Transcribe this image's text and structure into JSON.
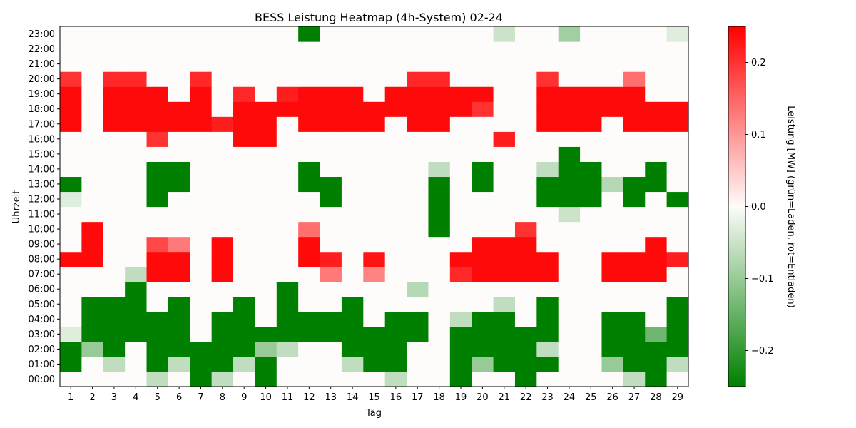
{
  "chart_data": {
    "type": "heatmap",
    "title": "BESS Leistung Heatmap (4h-System) 02-24",
    "xlabel": "Tag",
    "ylabel": "Uhrzeit",
    "colorbar_label": "Leistung [MW] (grün=Laden, rot=Entladen)",
    "colorbar_ticks": [
      "−0.2",
      "−0.1",
      "0.0",
      "0.1",
      "0.2"
    ],
    "colorbar_tick_values": [
      -0.2,
      -0.1,
      0.0,
      0.1,
      0.2
    ],
    "vlim": [
      -0.25,
      0.25
    ],
    "colormap": {
      "low": "#008000",
      "mid": "#fdfcfb",
      "high": "#ff0000"
    },
    "x": [
      "1",
      "2",
      "3",
      "4",
      "5",
      "6",
      "7",
      "8",
      "9",
      "10",
      "11",
      "12",
      "13",
      "14",
      "15",
      "16",
      "17",
      "18",
      "19",
      "20",
      "21",
      "22",
      "23",
      "24",
      "25",
      "26",
      "27",
      "28",
      "29"
    ],
    "y": [
      "00:00",
      "01:00",
      "02:00",
      "03:00",
      "04:00",
      "05:00",
      "06:00",
      "07:00",
      "08:00",
      "09:00",
      "10:00",
      "11:00",
      "12:00",
      "13:00",
      "14:00",
      "15:00",
      "16:00",
      "17:00",
      "18:00",
      "19:00",
      "20:00",
      "21:00",
      "22:00",
      "23:00"
    ],
    "values": [
      [
        0,
        0,
        0,
        0,
        -0.06,
        0,
        -0.25,
        -0.06,
        0,
        -0.25,
        0,
        0,
        0,
        0,
        0,
        -0.06,
        0,
        0,
        -0.25,
        0,
        0,
        -0.25,
        0,
        0,
        0,
        0,
        -0.06,
        -0.25,
        0
      ],
      [
        -0.25,
        0,
        -0.06,
        0,
        -0.25,
        -0.06,
        -0.25,
        -0.25,
        -0.06,
        -0.25,
        0,
        0,
        0,
        -0.06,
        -0.25,
        -0.25,
        0,
        0,
        -0.25,
        -0.1,
        -0.25,
        -0.25,
        -0.25,
        0,
        0,
        -0.1,
        -0.25,
        -0.25,
        -0.06
      ],
      [
        -0.25,
        -0.1,
        -0.25,
        0,
        -0.25,
        -0.25,
        -0.25,
        -0.25,
        -0.25,
        -0.1,
        -0.06,
        0,
        0,
        -0.25,
        -0.25,
        -0.25,
        0,
        0,
        -0.25,
        -0.25,
        -0.25,
        -0.25,
        -0.06,
        0,
        0,
        -0.25,
        -0.25,
        -0.25,
        -0.25
      ],
      [
        -0.03,
        -0.25,
        -0.25,
        -0.25,
        -0.25,
        -0.25,
        0,
        -0.25,
        -0.25,
        -0.25,
        -0.25,
        -0.25,
        -0.25,
        -0.25,
        -0.25,
        -0.25,
        -0.25,
        0,
        -0.25,
        -0.25,
        -0.25,
        -0.25,
        -0.25,
        0,
        0,
        -0.25,
        -0.25,
        -0.14,
        -0.25
      ],
      [
        0,
        -0.25,
        -0.25,
        -0.25,
        -0.25,
        -0.25,
        0,
        -0.25,
        -0.25,
        0,
        -0.25,
        -0.25,
        -0.25,
        -0.25,
        0,
        -0.25,
        -0.25,
        0,
        -0.06,
        -0.25,
        -0.25,
        0,
        -0.25,
        0,
        0,
        -0.25,
        -0.25,
        0,
        -0.25
      ],
      [
        0,
        -0.25,
        -0.25,
        -0.25,
        0,
        -0.25,
        0,
        0,
        -0.25,
        0,
        -0.25,
        0,
        0,
        -0.25,
        0,
        0,
        0,
        0,
        0,
        0,
        -0.06,
        0,
        -0.25,
        0,
        0,
        0,
        0,
        0,
        -0.25
      ],
      [
        0,
        0,
        0,
        -0.25,
        0,
        0,
        0,
        0,
        0,
        0,
        -0.25,
        0,
        0,
        0,
        0,
        0,
        -0.07,
        0,
        0,
        0,
        0,
        0,
        0,
        0,
        0,
        0,
        0,
        0,
        0
      ],
      [
        0,
        0,
        0,
        -0.06,
        0.24,
        0.24,
        0,
        0.24,
        0,
        0,
        0,
        0,
        0.13,
        0,
        0.12,
        0,
        0,
        0,
        0.21,
        0.24,
        0.24,
        0.24,
        0.24,
        0,
        0,
        0.24,
        0.24,
        0.24,
        0
      ],
      [
        0.24,
        0.24,
        0,
        0,
        0.24,
        0.24,
        0,
        0.24,
        0,
        0,
        0,
        0.24,
        0.22,
        0,
        0.23,
        0,
        0,
        0,
        0.24,
        0.24,
        0.24,
        0.24,
        0.24,
        0,
        0,
        0.24,
        0.24,
        0.24,
        0.22
      ],
      [
        0,
        0.24,
        0,
        0,
        0.18,
        0.13,
        0,
        0.24,
        0,
        0,
        0,
        0.24,
        0,
        0,
        0,
        0,
        0,
        0,
        0,
        0.24,
        0.24,
        0.24,
        0,
        0,
        0,
        0,
        0,
        0.24,
        0
      ],
      [
        0,
        0.24,
        0,
        0,
        0,
        0,
        0,
        0,
        0,
        0,
        0,
        0.14,
        0,
        0,
        0,
        0,
        0,
        -0.25,
        0,
        0,
        0,
        0.2,
        0,
        0,
        0,
        0,
        0,
        0,
        0
      ],
      [
        0,
        0,
        0,
        0,
        0,
        0,
        0,
        0,
        0,
        0,
        0,
        0,
        0,
        0,
        0,
        0,
        0,
        -0.25,
        0,
        0,
        0,
        0,
        0,
        -0.05,
        0,
        0,
        0,
        0,
        0
      ],
      [
        -0.03,
        0,
        0,
        0,
        -0.25,
        0,
        0,
        0,
        0,
        0,
        0,
        0,
        -0.25,
        0,
        0,
        0,
        0,
        -0.25,
        0,
        0,
        0,
        0,
        -0.25,
        -0.25,
        -0.25,
        0,
        -0.25,
        0,
        -0.25
      ],
      [
        -0.25,
        0,
        0,
        0,
        -0.25,
        -0.25,
        0,
        0,
        0,
        0,
        0,
        -0.25,
        -0.25,
        0,
        0,
        0,
        0,
        -0.25,
        0,
        -0.25,
        0,
        0,
        -0.25,
        -0.25,
        -0.25,
        -0.07,
        -0.25,
        -0.25,
        0
      ],
      [
        0,
        0,
        0,
        0,
        -0.25,
        -0.25,
        0,
        0,
        0,
        0,
        0,
        -0.25,
        0,
        0,
        0,
        0,
        0,
        -0.06,
        0,
        -0.25,
        0,
        0,
        -0.06,
        -0.25,
        -0.25,
        0,
        0,
        -0.25,
        0
      ],
      [
        0,
        0,
        0,
        0,
        0,
        0,
        0,
        0,
        0,
        0,
        0,
        0,
        0,
        0,
        0,
        0,
        0,
        0,
        0,
        0,
        0,
        0,
        0,
        -0.25,
        0,
        0,
        0,
        0,
        0
      ],
      [
        0,
        0,
        0,
        0,
        0.2,
        0,
        0,
        0,
        0.24,
        0.24,
        0,
        0,
        0,
        0,
        0,
        0,
        0,
        0,
        0,
        0,
        0.22,
        0,
        0,
        0,
        0,
        0,
        0,
        0,
        0
      ],
      [
        0.24,
        0,
        0.24,
        0.24,
        0.24,
        0.24,
        0.24,
        0.22,
        0.24,
        0.24,
        0,
        0.24,
        0.24,
        0.24,
        0.24,
        0,
        0.24,
        0.24,
        0,
        0,
        0,
        0,
        0.24,
        0.24,
        0.24,
        0,
        0.24,
        0.24,
        0.24
      ],
      [
        0.24,
        0,
        0.24,
        0.24,
        0.24,
        0.24,
        0.24,
        0,
        0.24,
        0.24,
        0.24,
        0.24,
        0.24,
        0.24,
        0.24,
        0.24,
        0.24,
        0.24,
        0.24,
        0.2,
        0,
        0,
        0.24,
        0.24,
        0.24,
        0.24,
        0.24,
        0.24,
        0.24
      ],
      [
        0.24,
        0,
        0.24,
        0.24,
        0.24,
        0,
        0.24,
        0,
        0.21,
        0,
        0.22,
        0.24,
        0.24,
        0.24,
        0,
        0.24,
        0.24,
        0.24,
        0.24,
        0.24,
        0,
        0,
        0.24,
        0.24,
        0.24,
        0.24,
        0.24,
        0,
        0
      ],
      [
        0.2,
        0,
        0.21,
        0.21,
        0,
        0,
        0.21,
        0,
        0,
        0,
        0,
        0,
        0,
        0,
        0,
        0,
        0.21,
        0.21,
        0,
        0,
        0,
        0,
        0.2,
        0,
        0,
        0,
        0.14,
        0,
        0
      ],
      [
        0,
        0,
        0,
        0,
        0,
        0,
        0,
        0,
        0,
        0,
        0,
        0,
        0,
        0,
        0,
        0,
        0,
        0,
        0,
        0,
        0,
        0,
        0,
        0,
        0,
        0,
        0,
        0,
        0
      ],
      [
        0,
        0,
        0,
        0,
        0,
        0,
        0,
        0,
        0,
        0,
        0,
        0,
        0,
        0,
        0,
        0,
        0,
        0,
        0,
        0,
        0,
        0,
        0,
        0,
        0,
        0,
        0,
        0,
        0
      ],
      [
        0,
        0,
        0,
        0,
        0,
        0,
        0,
        0,
        0,
        0,
        0,
        -0.25,
        0,
        0,
        0,
        0,
        0,
        0,
        0,
        0,
        -0.05,
        0,
        0,
        -0.09,
        0,
        0,
        0,
        0,
        -0.03
      ]
    ]
  }
}
